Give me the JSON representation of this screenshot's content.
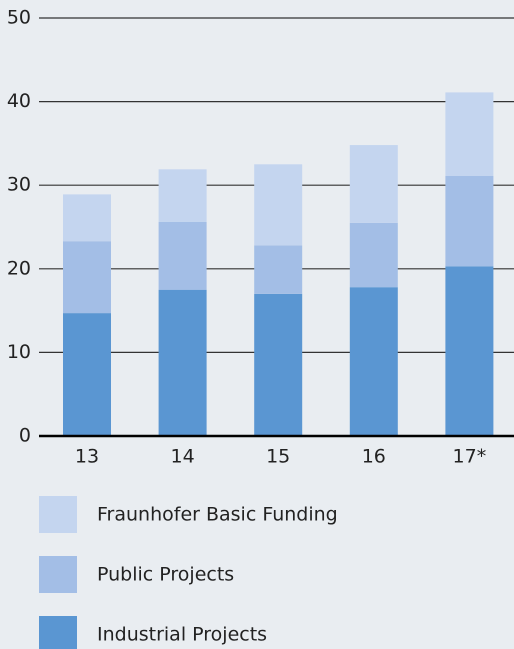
{
  "chart_data": {
    "type": "stacked_bar",
    "categories": [
      "13",
      "14",
      "15",
      "16",
      "17*"
    ],
    "series": [
      {
        "name": "Industrial Projects",
        "color": "#5a96d2",
        "values": [
          14.7,
          17.5,
          17.0,
          17.8,
          20.3
        ]
      },
      {
        "name": "Public Projects",
        "color": "#a3bee6",
        "values": [
          8.6,
          8.1,
          5.8,
          7.7,
          10.8
        ]
      },
      {
        "name": "Fraunhofer Basic Funding",
        "color": "#c4d5ef",
        "values": [
          5.6,
          6.3,
          9.7,
          9.3,
          10.0
        ]
      }
    ],
    "ylim": [
      0,
      50
    ],
    "yticks": [
      0,
      10,
      20,
      30,
      40,
      50
    ],
    "grid": true
  }
}
